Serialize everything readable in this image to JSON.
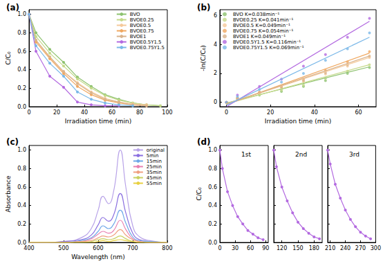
{
  "chart_data": [
    {
      "label": "(a)",
      "type": "line",
      "marker": "circle",
      "grid": false,
      "legend": "top-right",
      "xlabel": "Irradiation time (min)",
      "ylabel": "C/C₀",
      "xlim": [
        0,
        100
      ],
      "xticks": [
        0,
        20,
        40,
        60,
        80,
        100
      ],
      "ylim": [
        0,
        1.05
      ],
      "yticks": [
        {
          "value": 0,
          "label": "0.0"
        },
        {
          "value": 0.2,
          "label": "0.2"
        },
        {
          "value": 0.4,
          "label": "0.4"
        },
        {
          "value": 0.6,
          "label": "0.6"
        },
        {
          "value": 0.8,
          "label": "0.8"
        },
        {
          "value": 1,
          "label": "1.0"
        }
      ],
      "x": [
        0,
        5,
        15,
        25,
        35,
        45,
        55,
        65,
        75,
        85,
        95
      ],
      "series": [
        {
          "name": "BVO",
          "color": "#8dc26f",
          "values": [
            1,
            0.8,
            0.62,
            0.48,
            0.32,
            0.22,
            0.13,
            0.08,
            0.04,
            0.02,
            0.01
          ]
        },
        {
          "name": "BVOE0.25",
          "color": "#c5d98a",
          "values": [
            1,
            0.76,
            0.58,
            0.44,
            0.3,
            0.2,
            0.12,
            0.07,
            0.04,
            0.02,
            0.01
          ]
        },
        {
          "name": "BVOE0.5",
          "color": "#f5c99a",
          "values": [
            1,
            0.72,
            0.53,
            0.38,
            0.26,
            0.16,
            0.09,
            0.05,
            0.03,
            0.02,
            null
          ]
        },
        {
          "name": "BVOE0.75",
          "color": "#f0a860",
          "values": [
            1,
            0.7,
            0.52,
            0.36,
            0.22,
            0.13,
            0.07,
            0.04,
            0.02,
            0.01,
            null
          ]
        },
        {
          "name": "BVOE1",
          "color": "#d9b38c",
          "values": [
            1,
            0.72,
            0.54,
            0.38,
            0.25,
            0.15,
            0.08,
            0.05,
            0.02,
            0.01,
            null
          ]
        },
        {
          "name": "BVOE0.5Y1.5",
          "color": "#b36ae0",
          "values": [
            1,
            0.6,
            0.33,
            0.21,
            0.05,
            0.02,
            0.01,
            0.01,
            null,
            null,
            null
          ]
        },
        {
          "name": "BVOE0.75Y1.5",
          "color": "#7ab8e8",
          "values": [
            1,
            0.66,
            0.47,
            0.33,
            0.16,
            0.08,
            0.04,
            0.02,
            0.01,
            null,
            null
          ]
        }
      ]
    },
    {
      "label": "(b)",
      "type": "scatter",
      "marker": "circle",
      "grid": false,
      "legend": "top-left",
      "xlabel": "Irradiation time (min)",
      "ylabel": "-ln(C/C₀)",
      "xlim": [
        -3,
        68
      ],
      "xticks": [
        0,
        20,
        40,
        60
      ],
      "ylim": [
        -0.3,
        6.4
      ],
      "yticks": [
        0,
        2,
        4,
        6
      ],
      "x": [
        0,
        5,
        15,
        25,
        35,
        45,
        55,
        65
      ],
      "fit_x": [
        0,
        65
      ],
      "series": [
        {
          "name": "BVO K=0.038min⁻¹",
          "color": "#8dc26f",
          "values": [
            0,
            0.2,
            0.5,
            0.75,
            1.1,
            1.5,
            2.0,
            2.4
          ],
          "fit": [
            -0.05,
            2.45
          ]
        },
        {
          "name": "BVOE0.25 K=0.041min⁻¹",
          "color": "#c5d98a",
          "values": [
            0,
            0.25,
            0.55,
            0.85,
            1.2,
            1.65,
            2.15,
            2.6
          ],
          "fit": [
            -0.1,
            2.6
          ]
        },
        {
          "name": "BVOE0.5 K=0.049min⁻¹",
          "color": "#f5c99a",
          "values": [
            0,
            0.3,
            0.65,
            1.0,
            1.45,
            1.95,
            2.5,
            3.1
          ],
          "fit": [
            -0.1,
            3.1
          ]
        },
        {
          "name": "BVOE0.75 K=0.054min⁻¹",
          "color": "#f0a860",
          "values": [
            0,
            0.3,
            0.7,
            1.1,
            1.6,
            2.2,
            2.8,
            3.5
          ],
          "fit": [
            -0.15,
            3.4
          ]
        },
        {
          "name": "BVOE1 K=0.049min⁻¹",
          "color": "#d9b38c",
          "values": [
            0,
            0.3,
            0.7,
            1.05,
            1.5,
            2.05,
            2.6,
            3.2
          ],
          "fit": [
            -0.1,
            3.2
          ]
        },
        {
          "name": "BVOE0.5Y1.5 K=0.116min⁻¹",
          "color": "#b36ae0",
          "values": [
            0,
            0.5,
            1.1,
            1.6,
            2.5,
            3.3,
            4.5,
            5.8
          ],
          "fit": [
            -0.3,
            5.6
          ]
        },
        {
          "name": "BVOE0.75Y1.5 K=0.069min⁻¹",
          "color": "#7ab8e8",
          "values": [
            0,
            0.4,
            0.9,
            1.4,
            2.0,
            2.9,
            3.7,
            4.8
          ],
          "fit": [
            -0.2,
            4.5
          ]
        }
      ]
    },
    {
      "label": "(c)",
      "type": "line",
      "marker": "none",
      "grid": false,
      "legend": "top-right",
      "xlabel": "Wavelength (nm)",
      "ylabel": "Absorbance",
      "xlim": [
        400,
        800
      ],
      "xticks": [
        400,
        500,
        600,
        700,
        800
      ],
      "ylim": [
        0,
        1.05
      ],
      "yticks": [
        {
          "value": 0,
          "label": "0.0"
        },
        {
          "value": 0.2,
          "label": "0.2"
        },
        {
          "value": 0.4,
          "label": "0.4"
        },
        {
          "value": 0.6,
          "label": "0.6"
        },
        {
          "value": 0.8,
          "label": "0.8"
        },
        {
          "value": 1,
          "label": "1.0"
        }
      ],
      "x": [
        400,
        450,
        500,
        550,
        580,
        600,
        614,
        630,
        645,
        664,
        680,
        700,
        720,
        750,
        800
      ],
      "series": [
        {
          "name": "original",
          "color": "#b8a3e8",
          "values": [
            0,
            0,
            0.01,
            0.05,
            0.15,
            0.35,
            0.5,
            0.42,
            0.56,
            1.0,
            0.6,
            0.18,
            0.06,
            0.02,
            0
          ]
        },
        {
          "name": "5min",
          "color": "#8a6fe0",
          "values": [
            0,
            0,
            0.01,
            0.03,
            0.08,
            0.19,
            0.27,
            0.23,
            0.3,
            0.53,
            0.32,
            0.1,
            0.03,
            0.01,
            0
          ]
        },
        {
          "name": "15min",
          "color": "#6fa8e8",
          "values": [
            0,
            0,
            0,
            0.02,
            0.05,
            0.12,
            0.18,
            0.15,
            0.2,
            0.35,
            0.21,
            0.06,
            0.02,
            0.01,
            0
          ]
        },
        {
          "name": "25min",
          "color": "#e87fb0",
          "values": [
            0,
            0,
            0,
            0.01,
            0.04,
            0.09,
            0.12,
            0.1,
            0.13,
            0.24,
            0.14,
            0.04,
            0.01,
            0,
            0
          ]
        },
        {
          "name": "35min",
          "color": "#f0a080",
          "values": [
            0,
            0,
            0,
            0.01,
            0.02,
            0.05,
            0.07,
            0.06,
            0.08,
            0.14,
            0.08,
            0.03,
            0.01,
            0,
            0
          ]
        },
        {
          "name": "45min",
          "color": "#c8d060",
          "values": [
            0,
            0,
            0,
            0,
            0.01,
            0.03,
            0.04,
            0.03,
            0.04,
            0.07,
            0.04,
            0.01,
            0,
            0,
            0
          ]
        },
        {
          "name": "55min",
          "color": "#e8d040",
          "values": [
            0,
            0,
            0,
            0,
            0,
            0.01,
            0.02,
            0.01,
            0.02,
            0.03,
            0.02,
            0.01,
            0,
            0,
            0
          ]
        }
      ]
    },
    {
      "label": "(d)",
      "type": "line",
      "marker": "circle",
      "grid": false,
      "color": "#b36ae0",
      "ylabel": "C/C₀",
      "ylim": [
        0,
        1.05
      ],
      "yticks": [
        {
          "value": 0,
          "label": "0.0"
        },
        {
          "value": 0.2,
          "label": "0.2"
        },
        {
          "value": 0.4,
          "label": "0.4"
        },
        {
          "value": 0.6,
          "label": "0.6"
        },
        {
          "value": 0.8,
          "label": "0.8"
        },
        {
          "value": 1,
          "label": "1.0"
        }
      ],
      "cycles": [
        {
          "title": "1st",
          "xlim": [
            0,
            95
          ],
          "xticks": [
            0,
            30,
            60,
            90
          ],
          "x": [
            0,
            5,
            15,
            25,
            35,
            45,
            55,
            65,
            75,
            85
          ],
          "values": [
            1,
            0.8,
            0.55,
            0.4,
            0.28,
            0.2,
            0.13,
            0.09,
            0.05,
            0.03
          ]
        },
        {
          "title": "2nd",
          "xlim": [
            105,
            195
          ],
          "xticks": [
            120,
            150,
            180
          ],
          "x": [
            105,
            110,
            120,
            130,
            140,
            150,
            160,
            170,
            180,
            190
          ],
          "values": [
            1,
            0.82,
            0.6,
            0.45,
            0.32,
            0.22,
            0.15,
            0.1,
            0.06,
            0.04
          ]
        },
        {
          "title": "3rd",
          "xlim": [
            205,
            300
          ],
          "xticks": [
            210,
            240,
            270,
            300
          ],
          "x": [
            205,
            210,
            220,
            230,
            240,
            250,
            260,
            270,
            280,
            290
          ],
          "values": [
            1,
            0.85,
            0.63,
            0.48,
            0.35,
            0.25,
            0.17,
            0.11,
            0.07,
            0.04
          ]
        }
      ]
    }
  ]
}
